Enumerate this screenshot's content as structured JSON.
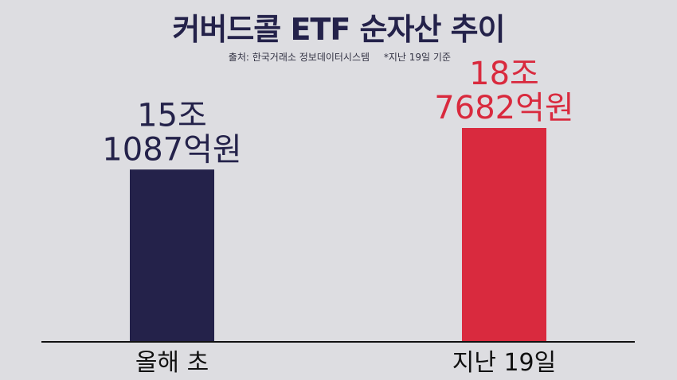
{
  "title": "커버드콜 ETF 순자산 추이",
  "source": "출처: 한국거래소 정보데이터시스템",
  "note": "*지난 19일 기준",
  "chart_data": {
    "type": "bar",
    "title": "커버드콜 ETF 순자산 추이",
    "categories": [
      "올해 초",
      "지난 19일"
    ],
    "values": [
      151087,
      187682
    ],
    "unit": "억원",
    "data_labels": [
      [
        "15조",
        "1087억원"
      ],
      [
        "18조",
        "7682억원"
      ]
    ],
    "colors": [
      "#24224a",
      "#d92a3e"
    ],
    "label_colors": [
      "#24224a",
      "#d92a3e"
    ],
    "xlabel": "",
    "ylabel": "",
    "grid": false,
    "legend": "none"
  }
}
